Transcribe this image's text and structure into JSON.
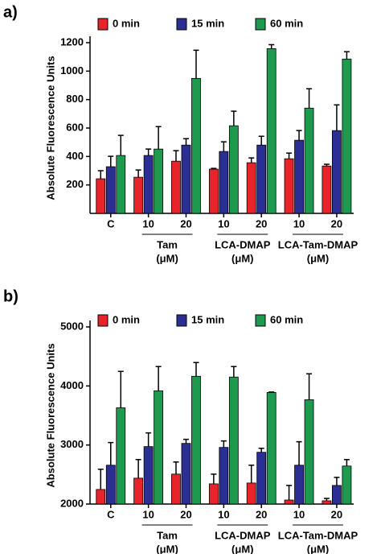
{
  "chart_data": [
    {
      "type": "bar",
      "panel": "a)",
      "ylabel": "Absolute Fluorescence Units",
      "categories": [
        "C",
        "10",
        "20",
        "10",
        "20",
        "10",
        "20"
      ],
      "groups": [
        {
          "lines": [
            "Tam",
            "(μM)"
          ],
          "span": [
            1,
            2
          ]
        },
        {
          "lines": [
            "LCA-DMAP",
            "(μM)"
          ],
          "span": [
            3,
            4
          ]
        },
        {
          "lines": [
            "LCA-Tam-DMAP",
            "(μM)"
          ],
          "span": [
            5,
            6
          ]
        }
      ],
      "series": [
        {
          "name": "0 min",
          "color": "#e8232a",
          "values": [
            243,
            254,
            367,
            311,
            356,
            384,
            333
          ],
          "errors": [
            57,
            51,
            74,
            5,
            34,
            40,
            12
          ]
        },
        {
          "name": "15 min",
          "color": "#2b2f93",
          "values": [
            328,
            407,
            480,
            435,
            480,
            514,
            582
          ],
          "errors": [
            73,
            45,
            45,
            68,
            62,
            68,
            181
          ]
        },
        {
          "name": "60 min",
          "color": "#1e9a4f",
          "values": [
            407,
            452,
            949,
            616,
            1158,
            740,
            1085
          ],
          "errors": [
            141,
            158,
            198,
            102,
            28,
            136,
            51
          ]
        }
      ],
      "ylim": [
        0,
        1200
      ],
      "yticks": [
        200,
        400,
        600,
        800,
        1000,
        1200
      ]
    },
    {
      "type": "bar",
      "panel": "b)",
      "ylabel": "Absolute Fluorescence Units",
      "categories": [
        "C",
        "10",
        "20",
        "10",
        "20",
        "10",
        "20"
      ],
      "groups": [
        {
          "lines": [
            "Tam",
            "(μM)"
          ],
          "span": [
            1,
            2
          ]
        },
        {
          "lines": [
            "LCA-DMAP",
            "(μM)"
          ],
          "span": [
            3,
            4
          ]
        },
        {
          "lines": [
            "LCA-Tam-DMAP",
            "(μM)"
          ],
          "span": [
            5,
            6
          ]
        }
      ],
      "series": [
        {
          "name": "0 min",
          "color": "#e8232a",
          "values": [
            2247,
            2438,
            2507,
            2342,
            2356,
            2068,
            2055
          ],
          "errors": [
            342,
            315,
            205,
            165,
            302,
            247,
            41
          ]
        },
        {
          "name": "15 min",
          "color": "#2b2f93",
          "values": [
            2658,
            2973,
            3027,
            2959,
            2877,
            2658,
            2315
          ],
          "errors": [
            383,
            232,
            69,
            109,
            68,
            397,
            137
          ]
        },
        {
          "name": "60 min",
          "color": "#1e9a4f",
          "values": [
            3630,
            3918,
            4164,
            4151,
            3890,
            3767,
            2644
          ],
          "errors": [
            617,
            411,
            233,
            178,
            8,
            438,
            109
          ]
        }
      ],
      "ylim": [
        2000,
        5000
      ],
      "yticks": [
        2000,
        3000,
        4000,
        5000
      ]
    }
  ]
}
